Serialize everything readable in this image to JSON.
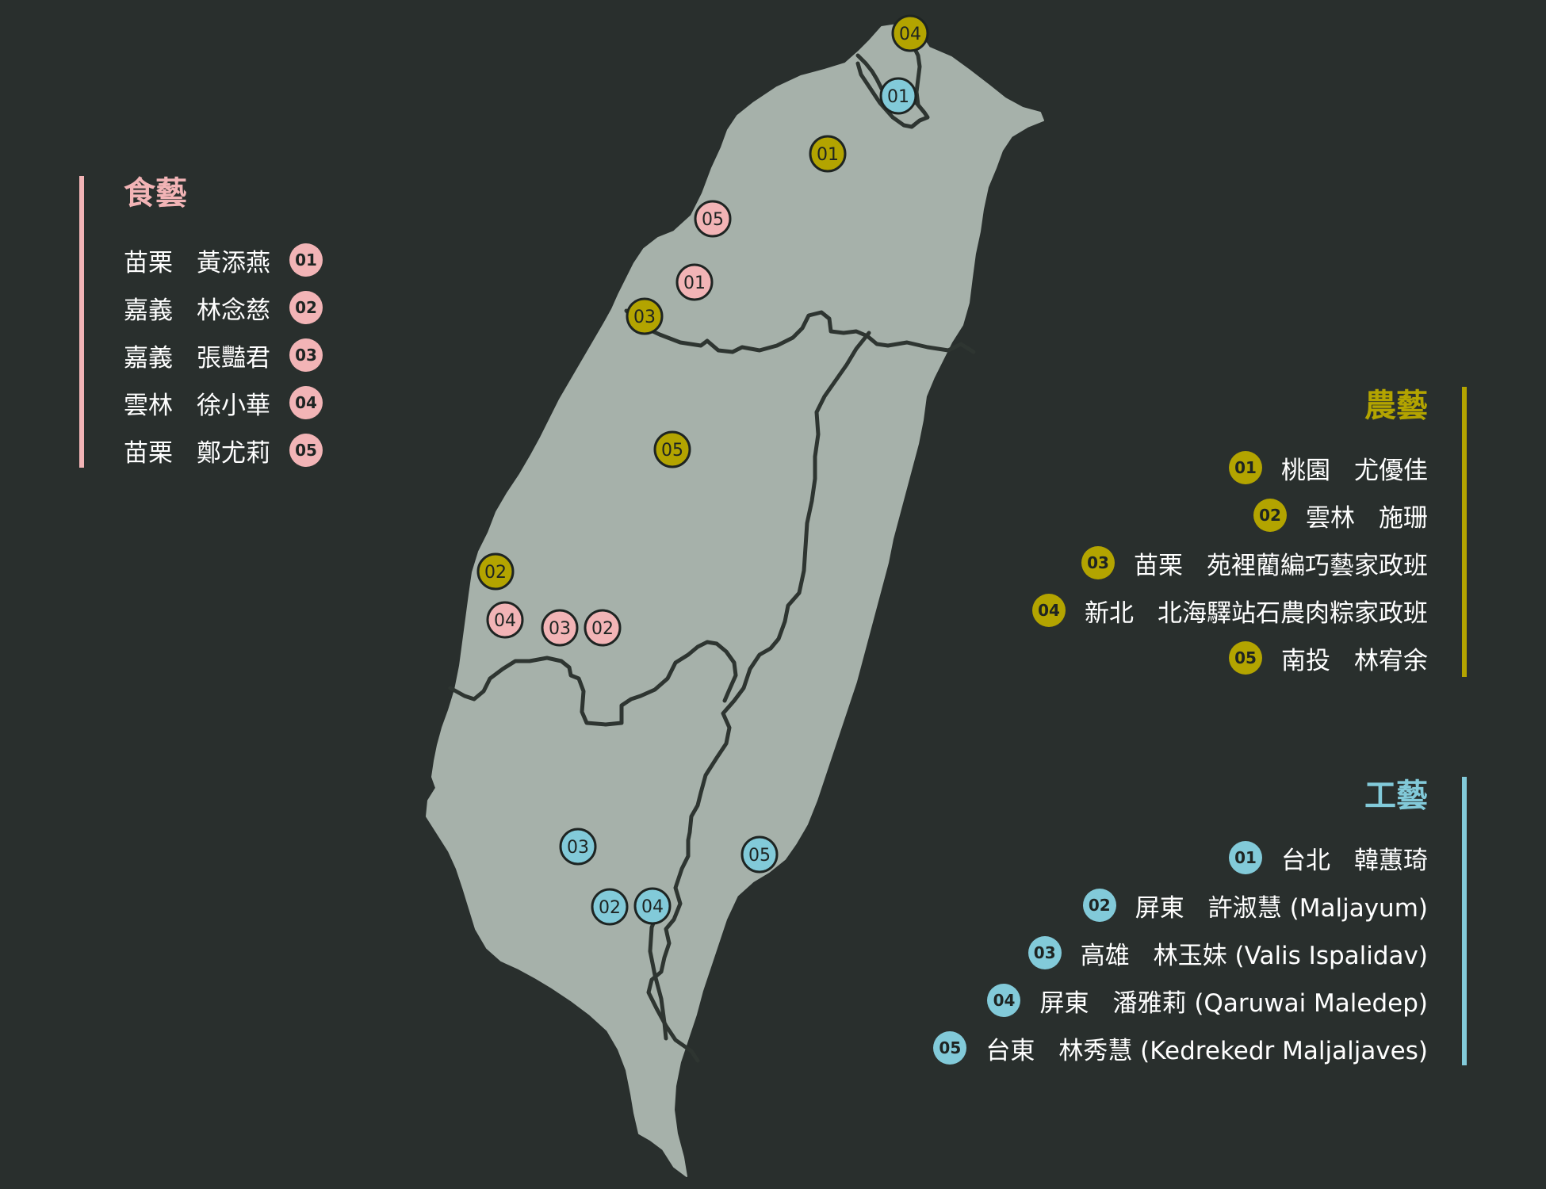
{
  "colors": {
    "background": "#292f2d",
    "land": "#a6b1aa",
    "border": "#2e3531",
    "food": "#f2b4b6",
    "agriculture": "#b3a400",
    "craft": "#82cad9"
  },
  "legends": {
    "food": {
      "title": "食藝",
      "items": [
        {
          "region": "苗栗",
          "name": "黃添燕",
          "num": "01"
        },
        {
          "region": "嘉義",
          "name": "林念慈",
          "num": "02"
        },
        {
          "region": "嘉義",
          "name": "張豔君",
          "num": "03"
        },
        {
          "region": "雲林",
          "name": "徐小華",
          "num": "04"
        },
        {
          "region": "苗栗",
          "name": "鄭尤莉",
          "num": "05"
        }
      ]
    },
    "agriculture": {
      "title": "農藝",
      "items": [
        {
          "region": "桃園",
          "name": "尤優佳",
          "num": "01"
        },
        {
          "region": "雲林",
          "name": "施珊",
          "num": "02"
        },
        {
          "region": "苗栗",
          "name": "苑裡藺編巧藝家政班",
          "num": "03"
        },
        {
          "region": "新北",
          "name": "北海驛站石農肉粽家政班",
          "num": "04"
        },
        {
          "region": "南投",
          "name": "林宥余",
          "num": "05"
        }
      ]
    },
    "craft": {
      "title": "工藝",
      "items": [
        {
          "region": "台北",
          "name": "韓蕙琦",
          "num": "01"
        },
        {
          "region": "屏東",
          "name": "許淑慧 (Maljayum)",
          "num": "02"
        },
        {
          "region": "高雄",
          "name": "林玉妹 (Valis Ispalidav)",
          "num": "03"
        },
        {
          "region": "屏東",
          "name": "潘雅莉 (Qaruwai Maledep)",
          "num": "04"
        },
        {
          "region": "台東",
          "name": "林秀慧 (Kedrekedr Maljaljaves)",
          "num": "05"
        }
      ]
    }
  },
  "map_markers": [
    {
      "category": "food",
      "num": "01"
    },
    {
      "category": "food",
      "num": "02"
    },
    {
      "category": "food",
      "num": "03"
    },
    {
      "category": "food",
      "num": "04"
    },
    {
      "category": "food",
      "num": "05"
    },
    {
      "category": "agriculture",
      "num": "01"
    },
    {
      "category": "agriculture",
      "num": "02"
    },
    {
      "category": "agriculture",
      "num": "03"
    },
    {
      "category": "agriculture",
      "num": "04"
    },
    {
      "category": "agriculture",
      "num": "05"
    },
    {
      "category": "craft",
      "num": "01"
    },
    {
      "category": "craft",
      "num": "02"
    },
    {
      "category": "craft",
      "num": "03"
    },
    {
      "category": "craft",
      "num": "04"
    },
    {
      "category": "craft",
      "num": "05"
    }
  ]
}
